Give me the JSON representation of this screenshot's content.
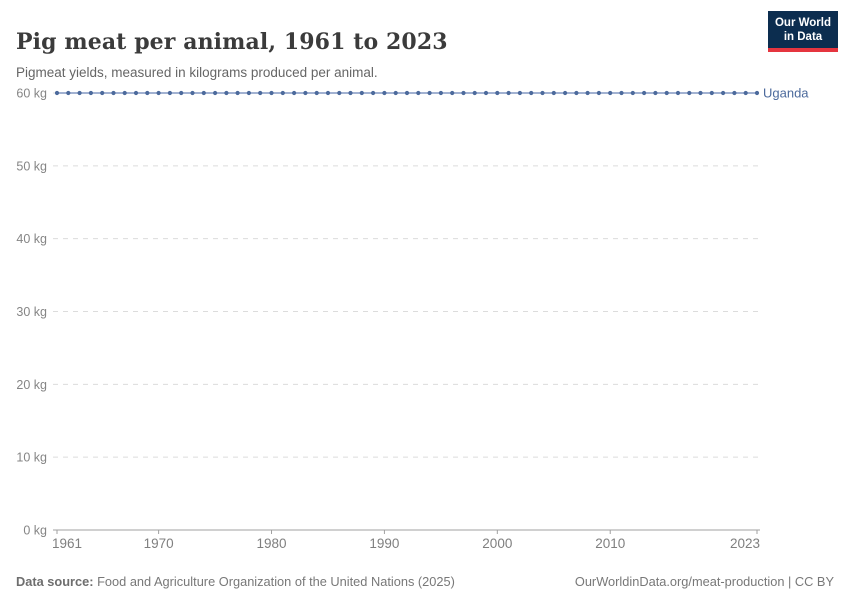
{
  "header": {
    "title": "Pig meat per animal, 1961 to 2023",
    "subtitle": "Pigmeat yields, measured in kilograms produced per animal."
  },
  "logo": {
    "line1": "Our World",
    "line2": "in Data"
  },
  "footer": {
    "source_label": "Data source:",
    "source_value": "Food and Agriculture Organization of the United Nations (2025)",
    "credit": "OurWorldinData.org/meat-production | CC BY"
  },
  "colors": {
    "accent_blue": "#4C6A9C",
    "series_line": "#8498C4",
    "series_dot": "#4C6A9C",
    "gridline": "#dcdcdc",
    "axis": "#a0a0a0",
    "logo_bg": "#0c2d4f",
    "logo_bar": "#e5353f"
  },
  "chart_data": {
    "type": "line",
    "title": "Pig meat per animal, 1961 to 2023",
    "subtitle": "Pigmeat yields, measured in kilograms produced per animal.",
    "xlabel": "",
    "ylabel": "kilograms produced per animal",
    "xlim": [
      1961,
      2023
    ],
    "ylim": [
      0,
      60
    ],
    "grid": "horizontal-dashed",
    "legend_position": "end-of-line-label",
    "x_ticks": [
      1961,
      1970,
      1980,
      1990,
      2000,
      2010,
      2023
    ],
    "y_ticks": [
      {
        "value": 0,
        "label": "0 kg"
      },
      {
        "value": 10,
        "label": "10 kg"
      },
      {
        "value": 20,
        "label": "20 kg"
      },
      {
        "value": 30,
        "label": "30 kg"
      },
      {
        "value": 40,
        "label": "40 kg"
      },
      {
        "value": 50,
        "label": "50 kg"
      },
      {
        "value": 60,
        "label": "60 kg"
      }
    ],
    "series": [
      {
        "name": "Uganda",
        "color": "#4C6A9C",
        "line_color": "#8498C4",
        "marker": "circle",
        "x": [
          1961,
          1962,
          1963,
          1964,
          1965,
          1966,
          1967,
          1968,
          1969,
          1970,
          1971,
          1972,
          1973,
          1974,
          1975,
          1976,
          1977,
          1978,
          1979,
          1980,
          1981,
          1982,
          1983,
          1984,
          1985,
          1986,
          1987,
          1988,
          1989,
          1990,
          1991,
          1992,
          1993,
          1994,
          1995,
          1996,
          1997,
          1998,
          1999,
          2000,
          2001,
          2002,
          2003,
          2004,
          2005,
          2006,
          2007,
          2008,
          2009,
          2010,
          2011,
          2012,
          2013,
          2014,
          2015,
          2016,
          2017,
          2018,
          2019,
          2020,
          2021,
          2022,
          2023
        ],
        "values": [
          60,
          60,
          60,
          60,
          60,
          60,
          60,
          60,
          60,
          60,
          60,
          60,
          60,
          60,
          60,
          60,
          60,
          60,
          60,
          60,
          60,
          60,
          60,
          60,
          60,
          60,
          60,
          60,
          60,
          60,
          60,
          60,
          60,
          60,
          60,
          60,
          60,
          60,
          60,
          60,
          60,
          60,
          60,
          60,
          60,
          60,
          60,
          60,
          60,
          60,
          60,
          60,
          60,
          60,
          60,
          60,
          60,
          60,
          60,
          60,
          60,
          60,
          60
        ]
      }
    ]
  }
}
